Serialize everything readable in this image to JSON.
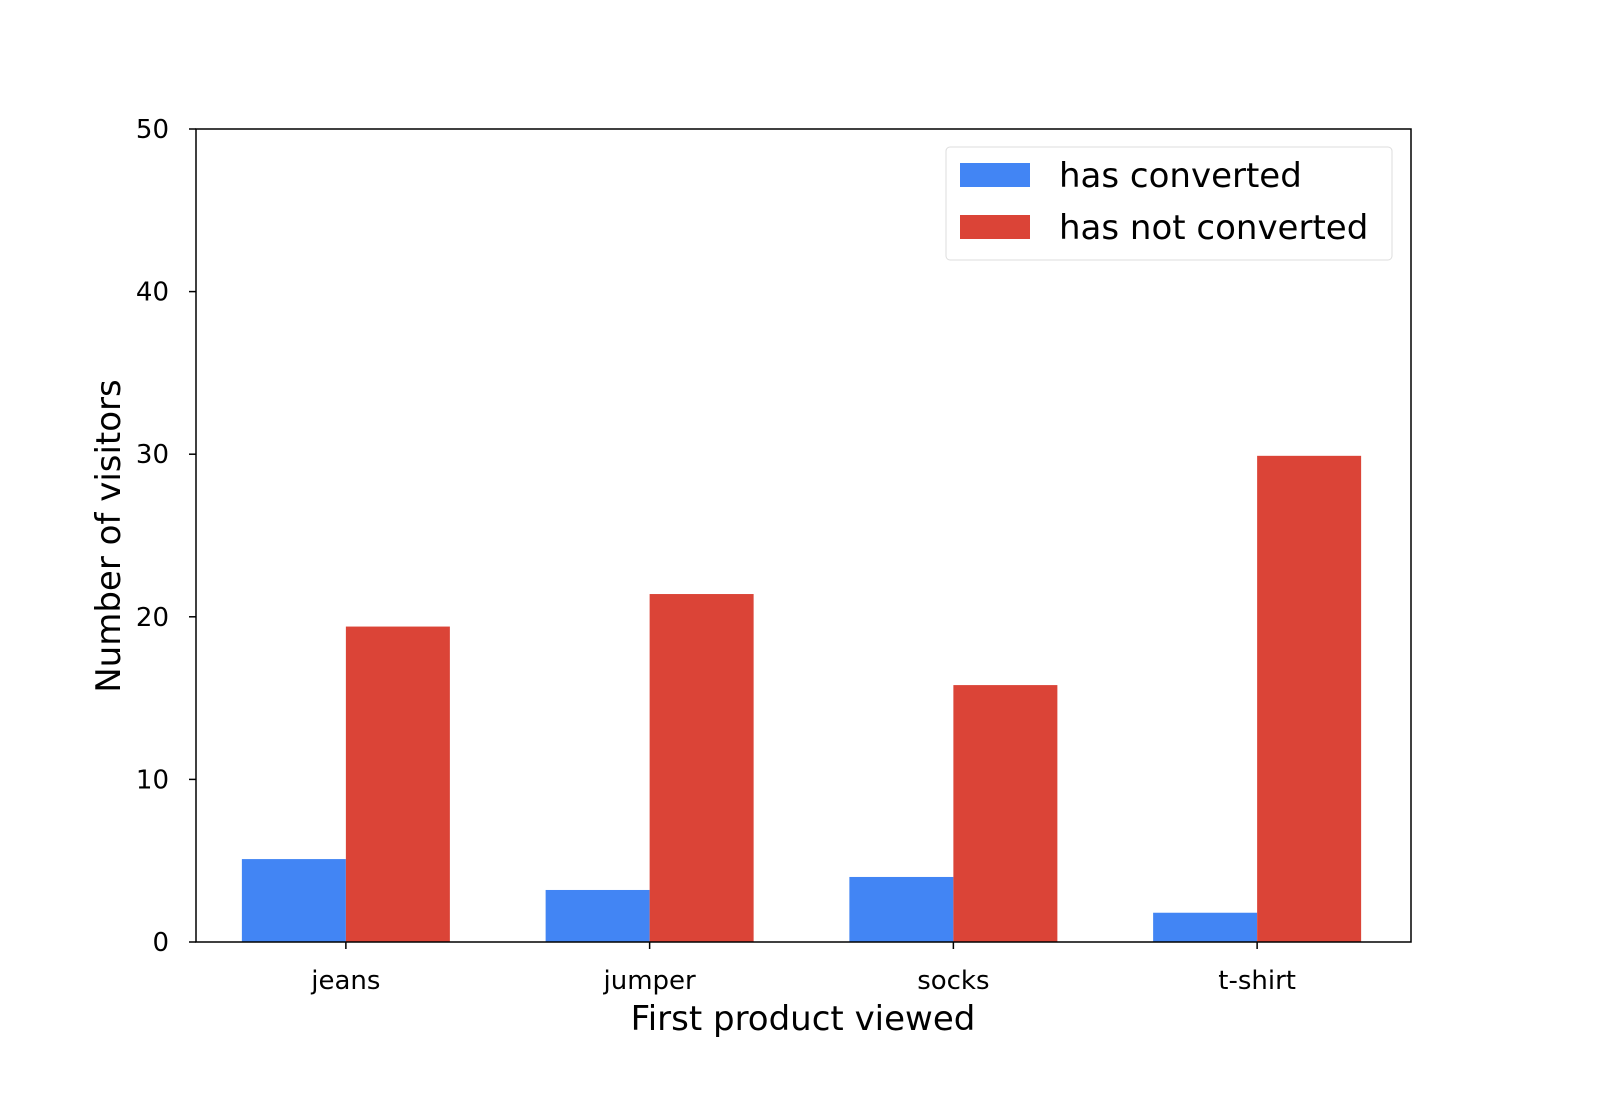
{
  "chart_data": {
    "type": "bar",
    "categories": [
      "jeans",
      "jumper",
      "socks",
      "t-shirt"
    ],
    "series": [
      {
        "name": "has converted",
        "color": "#4285f4",
        "values": [
          5.1,
          3.2,
          4.0,
          1.8
        ]
      },
      {
        "name": "has not converted",
        "color": "#db4437",
        "values": [
          19.4,
          21.4,
          15.8,
          29.9
        ]
      }
    ],
    "title": "",
    "xlabel": "First product viewed",
    "ylabel": "Number of visitors",
    "ylim": [
      0,
      50
    ],
    "yticks": [
      0,
      10,
      20,
      30,
      40,
      50
    ],
    "grid": false,
    "legend_position": "top-right"
  }
}
